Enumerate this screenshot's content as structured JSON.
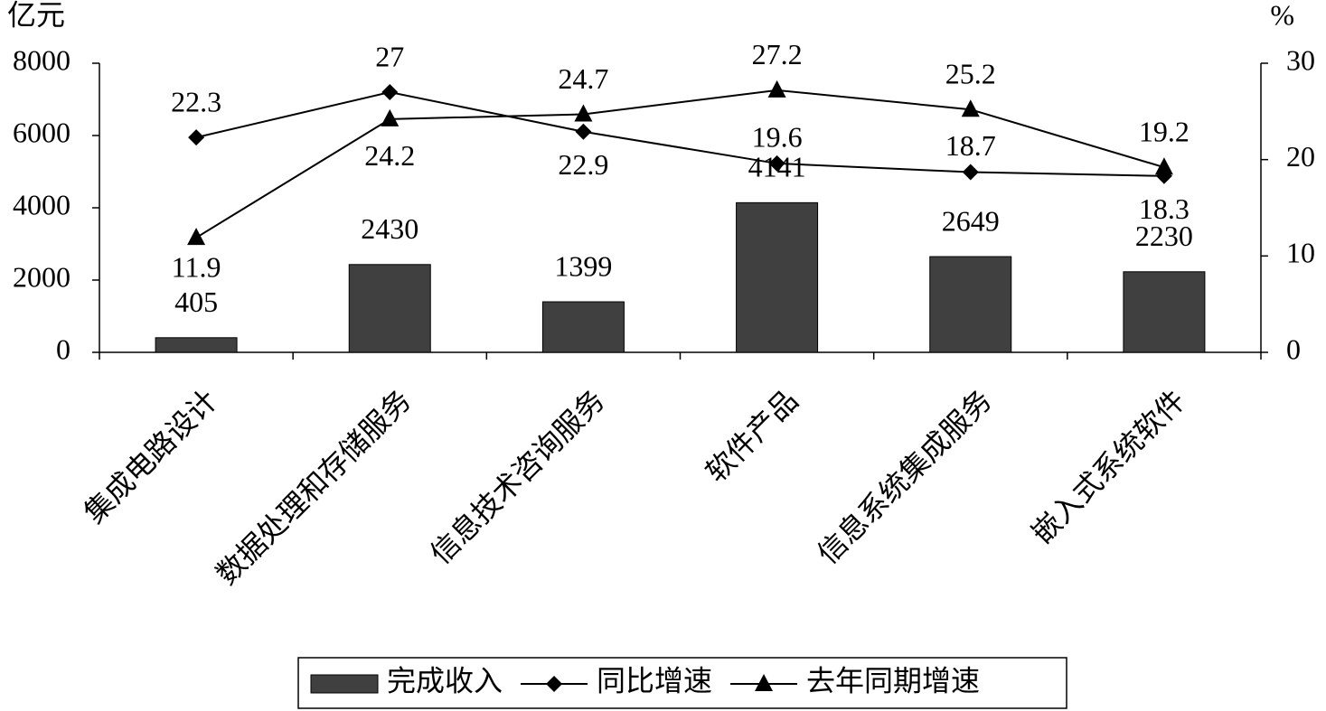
{
  "chart_data": {
    "type": "bar-line",
    "y_label": "亿元",
    "y2_label": "%",
    "categories": [
      "集成电路设计",
      "数据处理和存储服务",
      "信息技术咨询服务",
      "软件产品",
      "信息系统集成服务",
      "嵌入式系统软件"
    ],
    "series": [
      {
        "name": "完成收入",
        "type": "bar",
        "color": "#404040",
        "values": [
          405,
          2430,
          1399,
          4141,
          2649,
          2230
        ]
      },
      {
        "name": "同比增速",
        "type": "line",
        "marker": "diamond",
        "color": "#000000",
        "axis": "y2",
        "values": [
          22.3,
          27,
          22.9,
          19.6,
          18.7,
          18.3
        ]
      },
      {
        "name": "去年同期增速",
        "type": "line",
        "marker": "triangle",
        "color": "#000000",
        "axis": "y2",
        "values": [
          11.9,
          24.2,
          24.7,
          27.2,
          25.2,
          19.2
        ]
      }
    ],
    "ylim": [
      0,
      8000
    ],
    "yticks": [
      0,
      2000,
      4000,
      6000,
      8000
    ],
    "y2lim": [
      0,
      30
    ],
    "y2ticks": [
      0,
      10,
      20,
      30
    ],
    "legend": "bottom"
  }
}
